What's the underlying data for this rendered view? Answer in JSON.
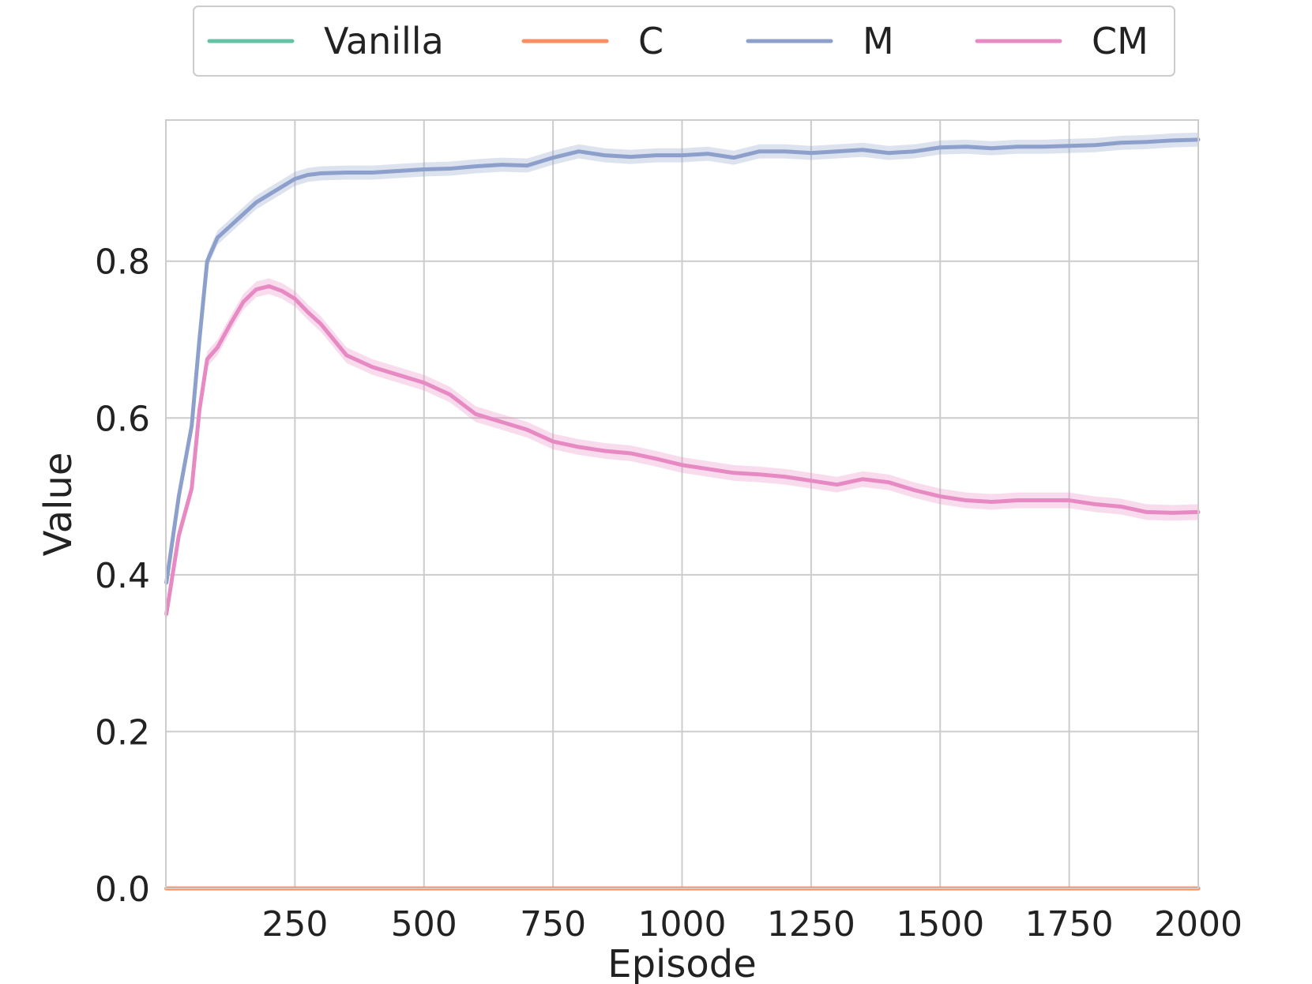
{
  "chart_data": {
    "type": "line",
    "title": "",
    "xlabel": "Episode",
    "ylabel": "Value",
    "xlim": [
      0,
      2000
    ],
    "ylim": [
      0.0,
      0.98
    ],
    "xticks": [
      250,
      500,
      750,
      1000,
      1250,
      1500,
      1750,
      2000
    ],
    "yticks": [
      0.0,
      0.2,
      0.4,
      0.6,
      0.8
    ],
    "grid": true,
    "legend_position": "top-center, outside above plot",
    "x": [
      1,
      25,
      50,
      65,
      80,
      100,
      125,
      150,
      175,
      200,
      225,
      250,
      275,
      300,
      350,
      400,
      450,
      500,
      550,
      600,
      650,
      700,
      750,
      800,
      850,
      900,
      950,
      1000,
      1050,
      1100,
      1150,
      1200,
      1250,
      1300,
      1350,
      1400,
      1450,
      1500,
      1550,
      1600,
      1650,
      1700,
      1750,
      1800,
      1850,
      1900,
      1950,
      2000
    ],
    "series": [
      {
        "name": "Vanilla",
        "color": "#66c2a5",
        "values": [
          0,
          0,
          0,
          0,
          0,
          0,
          0,
          0,
          0,
          0,
          0,
          0,
          0,
          0,
          0,
          0,
          0,
          0,
          0,
          0,
          0,
          0,
          0,
          0,
          0,
          0,
          0,
          0,
          0,
          0,
          0,
          0,
          0,
          0,
          0,
          0,
          0,
          0,
          0,
          0,
          0,
          0,
          0,
          0,
          0,
          0,
          0,
          0
        ]
      },
      {
        "name": "C",
        "color": "#fc8d62",
        "values": [
          0,
          0,
          0,
          0,
          0,
          0,
          0,
          0,
          0,
          0,
          0,
          0,
          0,
          0,
          0,
          0,
          0,
          0,
          0,
          0,
          0,
          0,
          0,
          0,
          0,
          0,
          0,
          0,
          0,
          0,
          0,
          0,
          0,
          0,
          0,
          0,
          0,
          0,
          0,
          0,
          0,
          0,
          0,
          0,
          0,
          0,
          0,
          0
        ]
      },
      {
        "name": "M",
        "color": "#8da0cb",
        "values": [
          0.39,
          0.5,
          0.59,
          0.7,
          0.8,
          0.83,
          0.845,
          0.86,
          0.875,
          0.885,
          0.895,
          0.905,
          0.91,
          0.912,
          0.913,
          0.913,
          0.915,
          0.917,
          0.918,
          0.921,
          0.923,
          0.922,
          0.932,
          0.94,
          0.935,
          0.933,
          0.935,
          0.935,
          0.937,
          0.932,
          0.94,
          0.94,
          0.938,
          0.94,
          0.942,
          0.938,
          0.94,
          0.945,
          0.946,
          0.944,
          0.946,
          0.946,
          0.947,
          0.948,
          0.951,
          0.952,
          0.954,
          0.955
        ]
      },
      {
        "name": "CM",
        "color": "#e78ac3",
        "values": [
          0.35,
          0.45,
          0.51,
          0.61,
          0.675,
          0.69,
          0.72,
          0.748,
          0.764,
          0.768,
          0.762,
          0.752,
          0.735,
          0.72,
          0.68,
          0.665,
          0.655,
          0.645,
          0.63,
          0.605,
          0.595,
          0.585,
          0.57,
          0.563,
          0.558,
          0.555,
          0.548,
          0.54,
          0.535,
          0.53,
          0.528,
          0.525,
          0.52,
          0.515,
          0.522,
          0.518,
          0.508,
          0.5,
          0.495,
          0.493,
          0.495,
          0.495,
          0.495,
          0.49,
          0.487,
          0.48,
          0.479,
          0.48
        ]
      }
    ]
  }
}
